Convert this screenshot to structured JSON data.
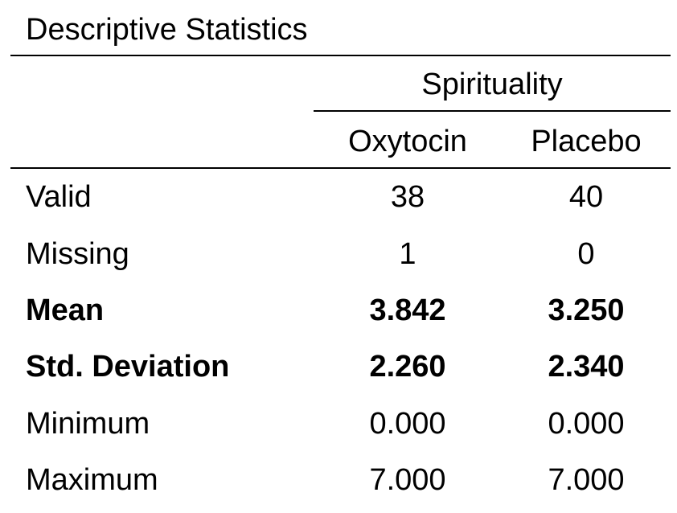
{
  "table": {
    "title": "Descriptive Statistics",
    "group_header": "Spirituality",
    "columns": [
      "Oxytocin",
      "Placebo"
    ],
    "rows": [
      {
        "label": "Valid",
        "values": [
          "38",
          "40"
        ],
        "bold": false
      },
      {
        "label": "Missing",
        "values": [
          "1",
          "0"
        ],
        "bold": false
      },
      {
        "label": "Mean",
        "values": [
          "3.842",
          "3.250"
        ],
        "bold": true
      },
      {
        "label": "Std. Deviation",
        "values": [
          "2.260",
          "2.340"
        ],
        "bold": true
      },
      {
        "label": "Minimum",
        "values": [
          "0.000",
          "0.000"
        ],
        "bold": false
      },
      {
        "label": "Maximum",
        "values": [
          "7.000",
          "7.000"
        ],
        "bold": false
      }
    ]
  }
}
